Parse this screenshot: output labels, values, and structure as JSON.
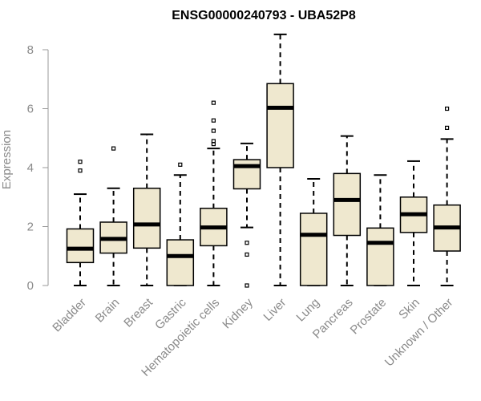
{
  "chart_data": {
    "type": "boxplot",
    "title": "ENSG00000240793 - UBA52P8",
    "ylabel": "Expression",
    "xlabel": "",
    "ylim": [
      0,
      8.6
    ],
    "yticks": [
      0,
      2,
      4,
      6,
      8
    ],
    "grid": false,
    "legend": "none",
    "colors": {
      "box_fill": "#efe8cf",
      "stroke": "#000000",
      "axis": "#999999",
      "label": "#8a8a8a"
    },
    "categories": [
      "Bladder",
      "Brain",
      "Breast",
      "Gastric",
      "Hematopoietic cells",
      "Kidney",
      "Liver",
      "Lung",
      "Pancreas",
      "Prostate",
      "Skin",
      "Unknown / Other"
    ],
    "boxes": [
      {
        "category": "Bladder",
        "whisker_low": 0,
        "q1": 0.78,
        "median": 1.25,
        "q3": 1.92,
        "whisker_high": 3.1,
        "outliers": [
          3.9,
          4.2
        ]
      },
      {
        "category": "Brain",
        "whisker_low": 0,
        "q1": 1.1,
        "median": 1.58,
        "q3": 2.15,
        "whisker_high": 3.3,
        "outliers": [
          4.65
        ]
      },
      {
        "category": "Breast",
        "whisker_low": 0,
        "q1": 1.27,
        "median": 2.07,
        "q3": 3.3,
        "whisker_high": 5.13,
        "outliers": []
      },
      {
        "category": "Gastric",
        "whisker_low": 0,
        "q1": 0,
        "median": 1.0,
        "q3": 1.55,
        "whisker_high": 3.75,
        "outliers": [
          4.1
        ]
      },
      {
        "category": "Hematopoietic cells",
        "whisker_low": 0,
        "q1": 1.35,
        "median": 1.97,
        "q3": 2.62,
        "whisker_high": 4.65,
        "outliers": [
          4.8,
          4.9,
          5.25,
          5.6,
          6.2
        ]
      },
      {
        "category": "Kidney",
        "whisker_low": 1.97,
        "q1": 3.28,
        "median": 4.05,
        "q3": 4.27,
        "whisker_high": 4.82,
        "outliers": [
          1.45,
          1.05,
          0.0
        ]
      },
      {
        "category": "Liver",
        "whisker_low": 0,
        "q1": 4.0,
        "median": 6.03,
        "q3": 6.85,
        "whisker_high": 8.52,
        "outliers": []
      },
      {
        "category": "Lung",
        "whisker_low": 0,
        "q1": 0,
        "median": 1.72,
        "q3": 2.45,
        "whisker_high": 3.62,
        "outliers": []
      },
      {
        "category": "Pancreas",
        "whisker_low": 0,
        "q1": 1.7,
        "median": 2.9,
        "q3": 3.8,
        "whisker_high": 5.07,
        "outliers": []
      },
      {
        "category": "Prostate",
        "whisker_low": 0,
        "q1": 0,
        "median": 1.45,
        "q3": 1.95,
        "whisker_high": 3.75,
        "outliers": []
      },
      {
        "category": "Skin",
        "whisker_low": 0,
        "q1": 1.8,
        "median": 2.42,
        "q3": 3.0,
        "whisker_high": 4.22,
        "outliers": []
      },
      {
        "category": "Unknown / Other",
        "whisker_low": 0,
        "q1": 1.17,
        "median": 1.97,
        "q3": 2.73,
        "whisker_high": 4.97,
        "outliers": [
          5.35,
          6.0
        ]
      }
    ]
  }
}
